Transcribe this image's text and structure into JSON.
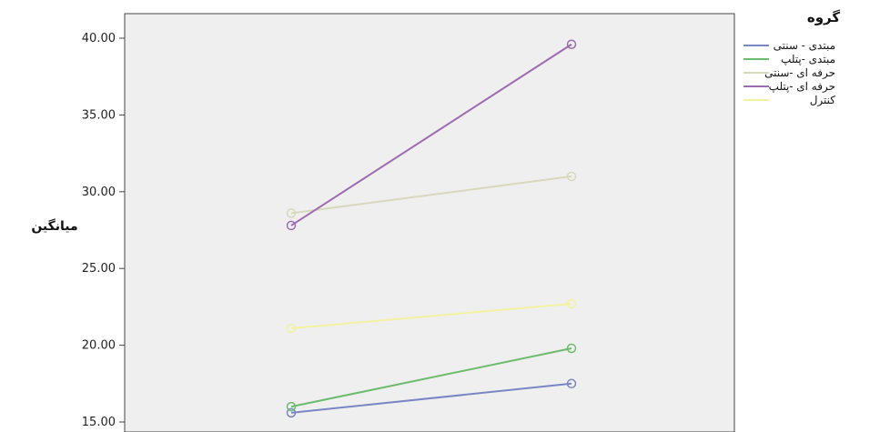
{
  "chart_data": {
    "type": "line",
    "ylabel": "میانگین",
    "ylim": [
      15,
      40
    ],
    "yticks": [
      "15.00",
      "20.00",
      "25.00",
      "30.00",
      "35.00",
      "40.00"
    ],
    "x": [
      1,
      2
    ],
    "legend_title": "گروه",
    "grid": false,
    "legend_position": "top-right",
    "series": [
      {
        "name": "مبتدی - سنتی",
        "values": [
          15.6,
          17.5
        ],
        "color": "#7a86c4"
      },
      {
        "name": "مبتدی -پتلپ",
        "values": [
          16.0,
          19.8
        ],
        "color": "#6dbb6d"
      },
      {
        "name": "حرفه ای -سنتی",
        "values": [
          28.6,
          31.0
        ],
        "color": "#d8d8bc"
      },
      {
        "name": "حرفه ای -پتلپ",
        "values": [
          27.8,
          39.6
        ],
        "color": "#9d6bb0"
      },
      {
        "name": "کنترل",
        "values": [
          21.1,
          22.7
        ],
        "color": "#f4f2a0"
      }
    ]
  }
}
